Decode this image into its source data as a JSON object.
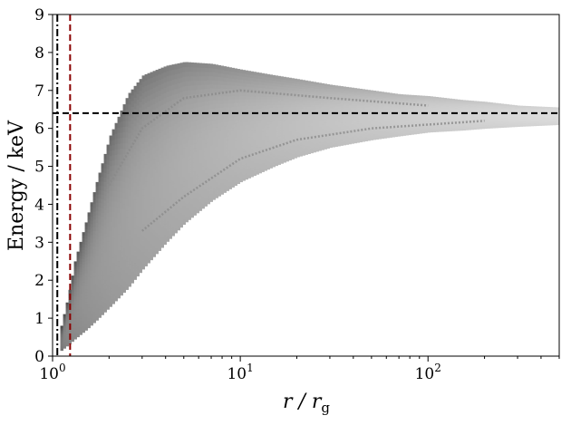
{
  "chart_data": {
    "type": "heatmap",
    "title": "",
    "xlabel": "r / r",
    "xlabel_sub": "g",
    "ylabel": "Energy / keV",
    "x_scale": "log",
    "xlim": [
      1,
      500
    ],
    "ylim": [
      0,
      9
    ],
    "x_ticks": [
      {
        "value": 1,
        "base": "10",
        "exp": "0"
      },
      {
        "value": 10,
        "base": "10",
        "exp": "1"
      },
      {
        "value": 100,
        "base": "10",
        "exp": "2"
      }
    ],
    "y_ticks": [
      0,
      1,
      2,
      3,
      4,
      5,
      6,
      7,
      8,
      9
    ],
    "grid": false,
    "colors": {
      "dark": "#1e1e1e",
      "light": "#ececec",
      "marker_red": "#8b0000",
      "marker_black": "#000000"
    },
    "reference_lines": [
      {
        "name": "line-energy",
        "orientation": "horizontal",
        "value": 6.4,
        "style": "dashed",
        "color": "#000000"
      },
      {
        "name": "line-isco",
        "orientation": "vertical",
        "value": 1.24,
        "style": "dashed",
        "color": "#8b0000"
      },
      {
        "name": "line-horizon",
        "orientation": "vertical",
        "value": 1.06,
        "style": "dashdot",
        "color": "#000000"
      }
    ],
    "envelope": {
      "r": [
        1.1,
        1.2,
        1.3,
        1.5,
        1.7,
        2,
        2.5,
        3,
        4,
        5,
        7,
        10,
        15,
        20,
        30,
        50,
        70,
        100,
        150,
        200,
        300,
        500
      ],
      "e_max": [
        0.8,
        1.6,
        2.5,
        3.6,
        4.6,
        5.8,
        6.9,
        7.4,
        7.65,
        7.75,
        7.7,
        7.55,
        7.4,
        7.3,
        7.15,
        7.0,
        6.9,
        6.85,
        6.75,
        6.7,
        6.6,
        6.55
      ],
      "e_min": [
        0.15,
        0.3,
        0.45,
        0.7,
        0.95,
        1.3,
        1.8,
        2.3,
        3.0,
        3.5,
        4.1,
        4.6,
        5.0,
        5.25,
        5.5,
        5.7,
        5.8,
        5.9,
        5.95,
        6.0,
        6.05,
        6.1
      ]
    },
    "ridges": [
      {
        "name": "ridge-lower",
        "r": [
          3,
          5,
          10,
          20,
          50,
          100,
          200
        ],
        "e": [
          3.3,
          4.2,
          5.2,
          5.7,
          6.0,
          6.1,
          6.2
        ]
      },
      {
        "name": "ridge-upper",
        "r": [
          2,
          3,
          5,
          10,
          30,
          100
        ],
        "e": [
          4.5,
          6.0,
          6.8,
          7.0,
          6.8,
          6.6
        ]
      }
    ]
  }
}
